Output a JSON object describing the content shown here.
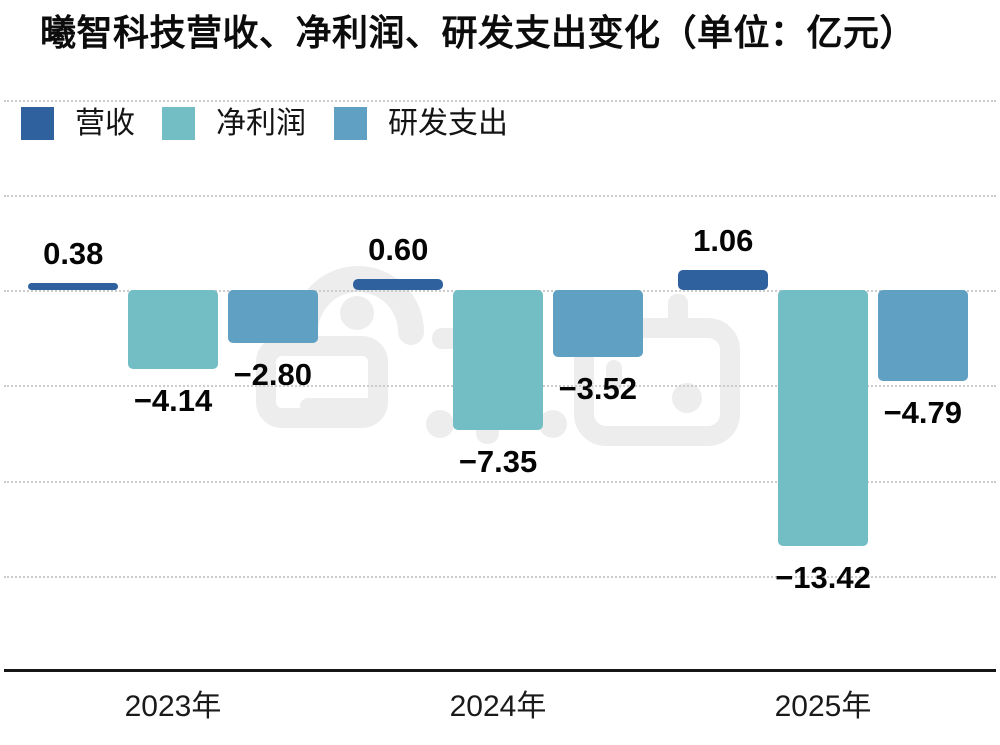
{
  "title": "曦智科技营收、净利润、研发支出变化（单位：亿元）",
  "legend": {
    "items": [
      {
        "label": "营收",
        "color": "#30619f"
      },
      {
        "label": "净利润",
        "color": "#73bec5"
      },
      {
        "label": "研发支出",
        "color": "#60a0c3"
      }
    ]
  },
  "watermark": {
    "name": "zhidongxi-logo",
    "color": "#ededed"
  },
  "chart_data": {
    "type": "bar",
    "title": "曦智科技营收、净利润、研发支出变化（单位：亿元）",
    "unit": "亿元",
    "categories": [
      "2023年",
      "2024年",
      "2025年"
    ],
    "series": [
      {
        "name": "营收",
        "color": "#30619f",
        "values": [
          0.38,
          0.6,
          1.06
        ],
        "labels": [
          "0.38",
          "0.60",
          "1.06"
        ]
      },
      {
        "name": "净利润",
        "color": "#73bec5",
        "values": [
          -4.14,
          -7.35,
          -13.42
        ],
        "labels": [
          "−4.14",
          "−7.35",
          "−13.42"
        ]
      },
      {
        "name": "研发支出",
        "color": "#60a0c3",
        "values": [
          -2.8,
          -3.52,
          -4.79
        ],
        "labels": [
          "−2.80",
          "−3.52",
          "−4.79"
        ]
      }
    ],
    "ylim": [
      -20,
      10
    ],
    "grid_values": [
      10,
      5,
      0,
      -5,
      -10,
      -15
    ],
    "grid_style": "dotted-horizontal",
    "legend_position": "top-left",
    "axis_line": "bottom-solid",
    "value_labels": "outside-end"
  }
}
